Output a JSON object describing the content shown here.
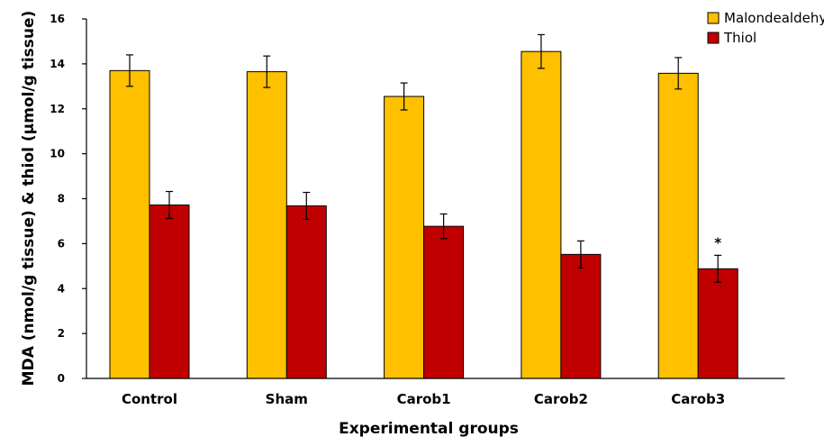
{
  "chart_data": {
    "type": "bar",
    "categories": [
      "Control",
      "Sham",
      "Carob1",
      "Carob2",
      "Carob3"
    ],
    "series": [
      {
        "name": "Malondealdehyde",
        "color": "#FFC000",
        "values": [
          13.7,
          13.65,
          12.55,
          14.55,
          13.58
        ],
        "errors": [
          0.7,
          0.7,
          0.6,
          0.75,
          0.7
        ]
      },
      {
        "name": "Thiol",
        "color": "#C00000",
        "values": [
          7.72,
          7.68,
          6.77,
          5.52,
          4.88
        ],
        "errors": [
          0.6,
          0.6,
          0.55,
          0.6,
          0.6
        ]
      }
    ],
    "xlabel": "Experimental groups",
    "ylabel": "MDA (nmol/g tissue) & thiol (µmol/g tissue)",
    "ylim": [
      0,
      16
    ],
    "yticks": [
      0,
      2,
      4,
      6,
      8,
      10,
      12,
      14,
      16
    ],
    "grid": false,
    "legend_position": "top-right",
    "annotations": [
      {
        "category": "Carob3",
        "series": "Thiol",
        "text": "*"
      }
    ]
  }
}
